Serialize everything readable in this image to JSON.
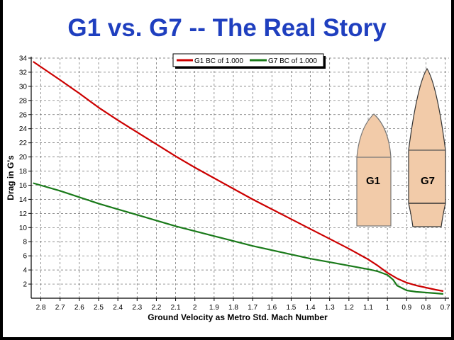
{
  "title": "G1 vs. G7 -- The Real Story",
  "chart_data": {
    "type": "line",
    "title": "G1 vs. G7 -- The Real Story",
    "xlabel": "Ground Velocity as Metro Std. Mach Number",
    "ylabel": "Drag in G's",
    "xlim": [
      2.85,
      0.68
    ],
    "ylim": [
      0,
      34
    ],
    "x_reversed": true,
    "x_ticks": [
      "2.8",
      "2.7",
      "2.6",
      "2.5",
      "2.4",
      "2.3",
      "2.2",
      "2.1",
      "2",
      "1.9",
      "1.8",
      "1.7",
      "1.6",
      "1.5",
      "1.4",
      "1.3",
      "1.2",
      "1.1",
      "1",
      "0.9",
      "0.8",
      "0.7"
    ],
    "y_ticks": [
      "2",
      "4",
      "6",
      "8",
      "10",
      "12",
      "14",
      "16",
      "18",
      "20",
      "22",
      "24",
      "26",
      "28",
      "30",
      "32",
      "34"
    ],
    "grid": true,
    "legend": "top-center",
    "series": [
      {
        "name": "G1 BC of 1.000",
        "color": "#cc0000",
        "x": [
          2.84,
          2.7,
          2.6,
          2.5,
          2.4,
          2.3,
          2.2,
          2.1,
          2.0,
          1.9,
          1.8,
          1.7,
          1.6,
          1.5,
          1.4,
          1.3,
          1.2,
          1.1,
          1.05,
          1.0,
          0.95,
          0.9,
          0.85,
          0.8,
          0.75,
          0.71
        ],
        "y": [
          33.5,
          30.9,
          29.0,
          27.0,
          25.2,
          23.5,
          21.8,
          20.1,
          18.5,
          17.0,
          15.5,
          14.0,
          12.6,
          11.2,
          9.8,
          8.4,
          7.0,
          5.5,
          4.6,
          3.6,
          2.8,
          2.2,
          1.8,
          1.5,
          1.2,
          1.0
        ]
      },
      {
        "name": "G7 BC of 1.000",
        "color": "#1a7a1a",
        "x": [
          2.84,
          2.7,
          2.6,
          2.5,
          2.4,
          2.3,
          2.2,
          2.1,
          2.0,
          1.9,
          1.8,
          1.7,
          1.6,
          1.5,
          1.4,
          1.3,
          1.2,
          1.1,
          1.05,
          1.0,
          0.97,
          0.95,
          0.9,
          0.85,
          0.8,
          0.75,
          0.71
        ],
        "y": [
          16.3,
          15.2,
          14.3,
          13.4,
          12.6,
          11.8,
          11.0,
          10.2,
          9.5,
          8.8,
          8.1,
          7.4,
          6.8,
          6.2,
          5.6,
          5.1,
          4.6,
          4.1,
          3.8,
          3.3,
          2.6,
          1.8,
          1.1,
          0.9,
          0.8,
          0.7,
          0.6
        ]
      }
    ],
    "annotations": [
      "G1",
      "G7"
    ]
  },
  "colors": {
    "title": "#1f3fbf",
    "bullet_fill": "#f2cba9",
    "bullet_stroke": "#777777"
  }
}
